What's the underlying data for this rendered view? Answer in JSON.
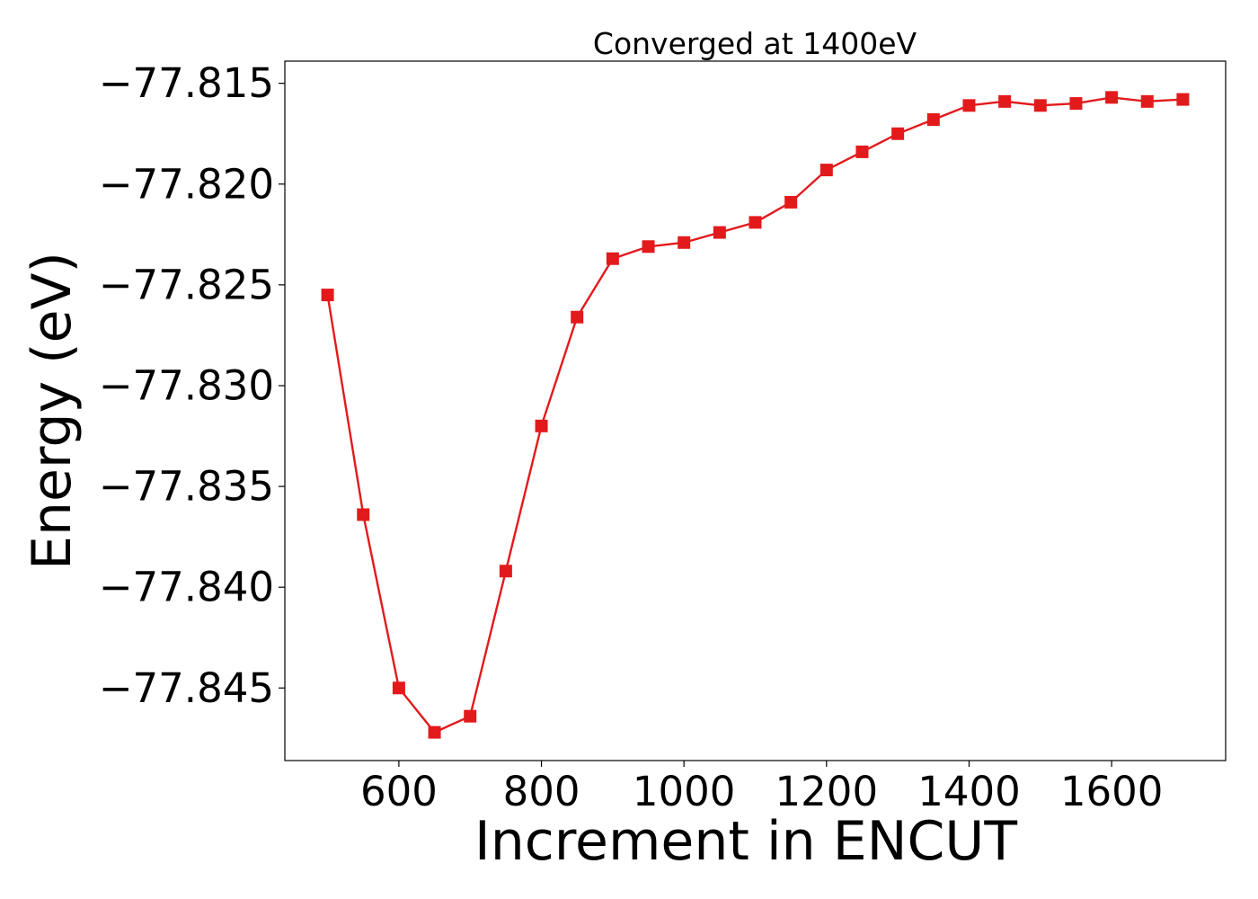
{
  "chart_data": {
    "type": "line",
    "title": "Converged at 1400eV",
    "xlabel": "Increment in ENCUT",
    "ylabel": "Energy (eV)",
    "xlim": [
      440,
      1760
    ],
    "ylim": [
      -77.8486,
      -77.8139
    ],
    "x_ticks": [
      600,
      800,
      1000,
      1200,
      1400,
      1600
    ],
    "x_tick_labels": [
      "600",
      "800",
      "1000",
      "1200",
      "1400",
      "1600"
    ],
    "y_ticks": [
      -77.815,
      -77.82,
      -77.825,
      -77.83,
      -77.835,
      -77.84,
      -77.845
    ],
    "y_tick_labels": [
      "−77.815",
      "−77.820",
      "−77.825",
      "−77.830",
      "−77.835",
      "−77.840",
      "−77.845"
    ],
    "grid": false,
    "legend": false,
    "series": [
      {
        "color": "#e31a1c",
        "marker": "square",
        "x": [
          500,
          550,
          600,
          650,
          700,
          750,
          800,
          850,
          900,
          950,
          1000,
          1050,
          1100,
          1150,
          1200,
          1250,
          1300,
          1350,
          1400,
          1450,
          1500,
          1550,
          1600,
          1650,
          1700
        ],
        "y": [
          -77.8255,
          -77.8364,
          -77.845,
          -77.8472,
          -77.8464,
          -77.8392,
          -77.832,
          -77.8266,
          -77.8237,
          -77.8231,
          -77.8229,
          -77.8224,
          -77.8219,
          -77.8209,
          -77.8193,
          -77.8184,
          -77.8175,
          -77.8168,
          -77.8161,
          -77.8159,
          -77.8161,
          -77.816,
          -77.8157,
          -77.8159,
          -77.8158
        ]
      }
    ]
  }
}
